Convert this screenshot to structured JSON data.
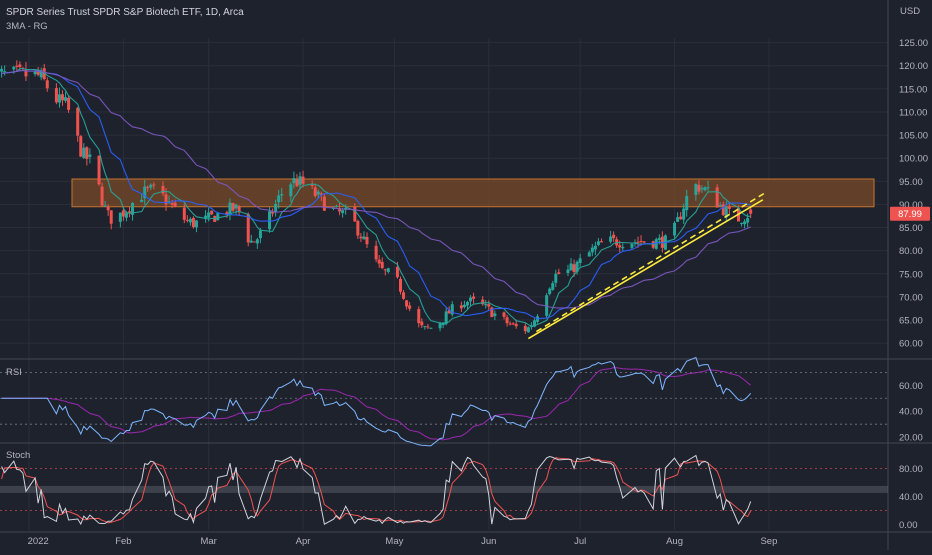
{
  "header": {
    "title": "SPDR Series Trust SPDR S&P Biotech ETF, 1D, Arca",
    "indicator": "3MA - RG",
    "currency": "USD",
    "last_price": "87.99"
  },
  "colors": {
    "background": "#1e222d",
    "grid": "#2a2e39",
    "text": "#b2b5be",
    "up": "#26a69a",
    "down": "#ef5350",
    "zone": "#8a5025",
    "zone_border": "#c8742f",
    "trendline": "#ffeb3b",
    "ma_fast": "#26a69a",
    "ma_mid": "#2962ff",
    "ma_slow": "#7e57c2",
    "rsi": "#7eb6ff",
    "rsi_ma": "#9c27b0",
    "stoch_k": "#d1d4dc",
    "stoch_d": "#ef5350"
  },
  "chart_data": [
    {
      "type": "candlestick",
      "title": "SPDR Series Trust SPDR S&P Biotech ETF, 1D, Arca",
      "yaxis_label": "USD",
      "ylim": [
        57,
        126
      ],
      "yticks": [
        "60.00",
        "65.00",
        "70.00",
        "75.00",
        "80.00",
        "85.00",
        "90.00",
        "95.00",
        "100.00",
        "105.00",
        "110.00",
        "115.00",
        "120.00",
        "125.00"
      ],
      "xticks": [
        "2022",
        "Feb",
        "Mar",
        "Apr",
        "May",
        "Jun",
        "Jul",
        "Aug",
        "Sep"
      ],
      "key_closes": [
        {
          "date": "2022-01-03",
          "close": 118
        },
        {
          "date": "2022-01-12",
          "close": 112
        },
        {
          "date": "2022-01-20",
          "close": 100
        },
        {
          "date": "2022-01-28",
          "close": 87
        },
        {
          "date": "2022-02-10",
          "close": 93
        },
        {
          "date": "2022-02-24",
          "close": 86
        },
        {
          "date": "2022-03-10",
          "close": 89
        },
        {
          "date": "2022-03-15",
          "close": 82
        },
        {
          "date": "2022-03-29",
          "close": 95
        },
        {
          "date": "2022-04-14",
          "close": 88
        },
        {
          "date": "2022-04-29",
          "close": 75
        },
        {
          "date": "2022-05-11",
          "close": 63
        },
        {
          "date": "2022-05-25",
          "close": 69
        },
        {
          "date": "2022-06-13",
          "close": 63
        },
        {
          "date": "2022-06-24",
          "close": 75
        },
        {
          "date": "2022-07-11",
          "close": 82
        },
        {
          "date": "2022-07-29",
          "close": 82
        },
        {
          "date": "2022-08-08",
          "close": 94
        },
        {
          "date": "2022-08-22",
          "close": 87
        },
        {
          "date": "2022-08-26",
          "close": 87.99
        }
      ],
      "resistance_zone": [
        89.5,
        95.5
      ],
      "trendline": {
        "start": {
          "date": "2022-06-14",
          "price": 61
        },
        "end": {
          "date": "2022-08-30",
          "price": 91
        }
      }
    },
    {
      "type": "line",
      "title": "RSI",
      "ylim": [
        17,
        78
      ],
      "yticks": [
        "20.00",
        "40.00",
        "60.00"
      ],
      "levels": [
        30,
        50,
        70
      ]
    },
    {
      "type": "line",
      "title": "Stoch",
      "ylim": [
        -8,
        112
      ],
      "yticks": [
        "0.00",
        "40.00",
        "80.00"
      ],
      "levels": [
        20,
        50,
        80
      ]
    }
  ]
}
